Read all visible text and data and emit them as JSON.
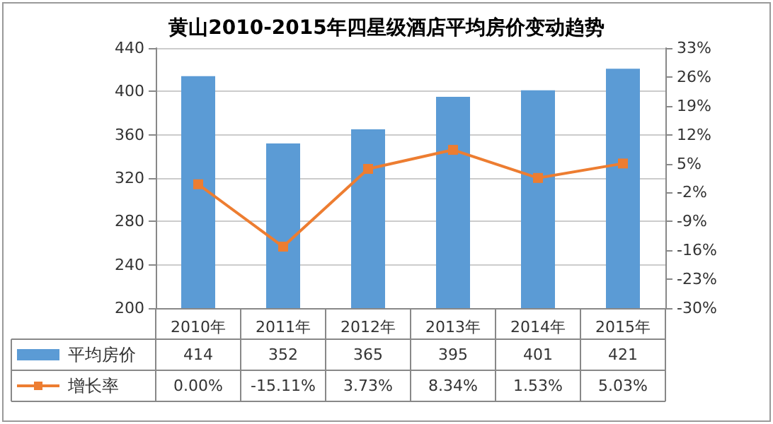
{
  "chart_data": {
    "type": "bar",
    "title": "黄山2010-2015年四星级酒店平均房价变动趋势",
    "categories": [
      "2010年",
      "2011年",
      "2012年",
      "2013年",
      "2014年",
      "2015年"
    ],
    "series": [
      {
        "name": "平均房价",
        "color": "#5b9bd5",
        "values": [
          414,
          352,
          365,
          395,
          401,
          421
        ],
        "value_labels": [
          "414",
          "352",
          "365",
          "395",
          "401",
          "421"
        ]
      },
      {
        "name": "增长率",
        "type": "line",
        "axis": "y2",
        "color": "#ed7d31",
        "marker": "square",
        "values": [
          0,
          -15.11,
          3.73,
          8.34,
          1.53,
          5.03
        ],
        "value_labels": [
          "0.00%",
          "-15.11%",
          "3.73%",
          "8.34%",
          "1.53%",
          "5.03%"
        ]
      }
    ],
    "ylim": [
      200,
      440
    ],
    "yticks": [
      200,
      240,
      280,
      320,
      360,
      400,
      440
    ],
    "y2lim": [
      -30,
      33
    ],
    "y2ticks": [
      {
        "value": -30,
        "label": "-30%"
      },
      {
        "value": -23,
        "label": "-23%"
      },
      {
        "value": -16,
        "label": "-16%"
      },
      {
        "value": -9,
        "label": "-9%"
      },
      {
        "value": -2,
        "label": "-2%"
      },
      {
        "value": 5,
        "label": "5%"
      },
      {
        "value": 12,
        "label": "12%"
      },
      {
        "value": 19,
        "label": "19%"
      },
      {
        "value": 26,
        "label": "26%"
      },
      {
        "value": 33,
        "label": "33%"
      }
    ],
    "grid": "y",
    "legend": "bottom"
  }
}
